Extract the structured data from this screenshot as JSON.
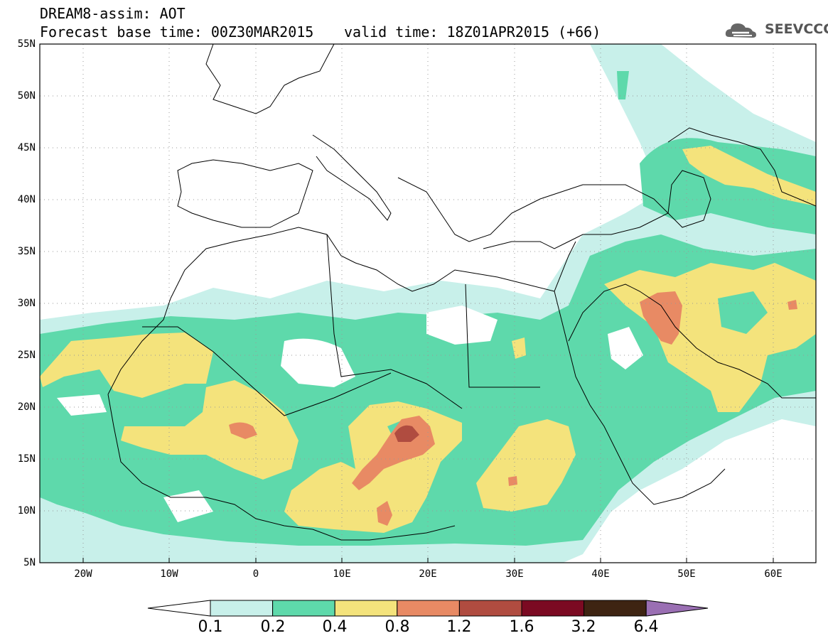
{
  "header": {
    "title": "DREAM8-assim: AOT",
    "base_time": "Forecast base time: 00Z30MAR2015",
    "valid_time": "valid time: 18Z01APR2015 (+66)",
    "logo_text": "SEEVCCC"
  },
  "map": {
    "lon_range": [
      -25,
      65
    ],
    "lat_range": [
      5,
      55
    ],
    "lat_labels": [
      "55N",
      "50N",
      "45N",
      "40N",
      "35N",
      "30N",
      "25N",
      "20N",
      "15N",
      "10N",
      "5N"
    ],
    "lon_labels": [
      "20W",
      "10W",
      "0",
      "10E",
      "20E",
      "30E",
      "40E",
      "50E",
      "60E"
    ],
    "grid": "dotted"
  },
  "legend": {
    "labels": [
      "0.1",
      "0.2",
      "0.4",
      "0.8",
      "1.2",
      "1.6",
      "3.2",
      "6.4"
    ],
    "colors": [
      "#ffffff",
      "#c8f0ea",
      "#5ed9ab",
      "#f4e37c",
      "#e88a64",
      "#b04c40",
      "#7b0a22",
      "#3e2412",
      "#9a6fb3"
    ]
  }
}
